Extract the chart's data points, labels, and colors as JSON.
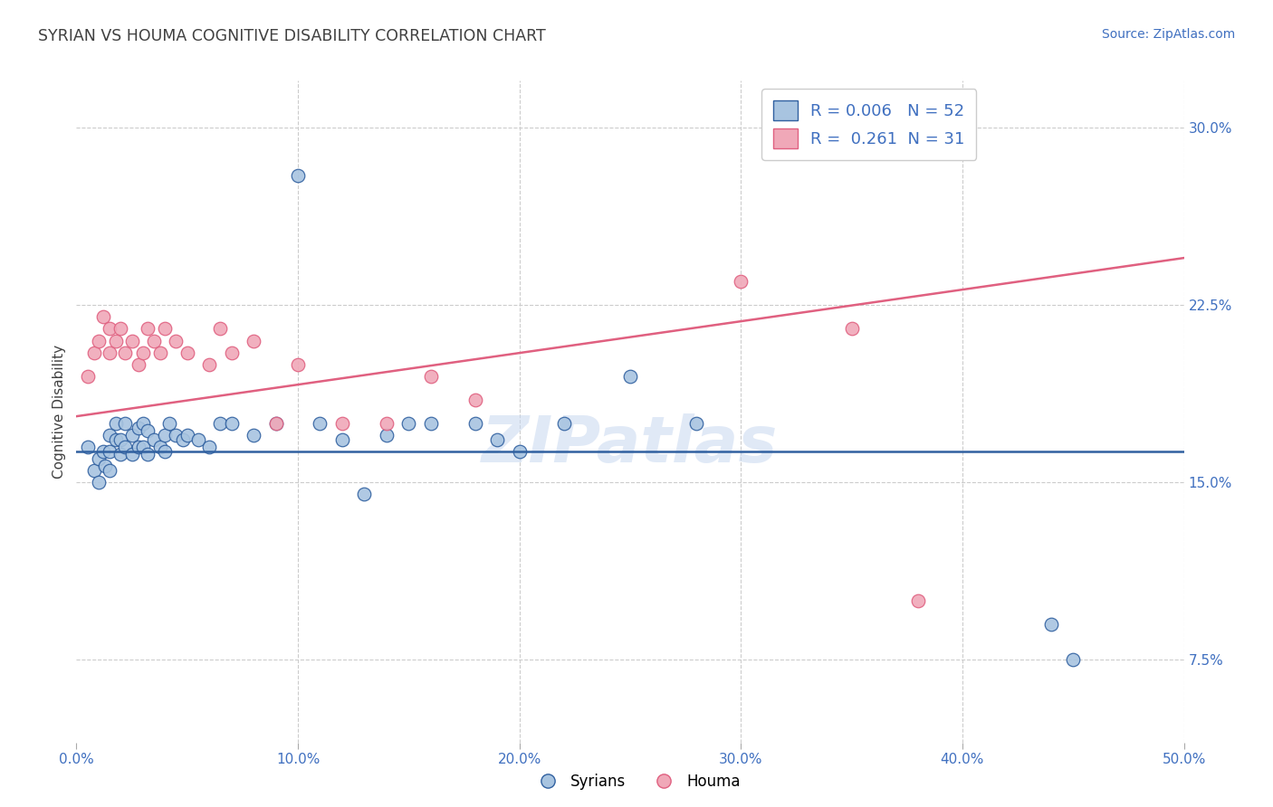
{
  "title": "SYRIAN VS HOUMA COGNITIVE DISABILITY CORRELATION CHART",
  "source_text": "Source: ZipAtlas.com",
  "ylabel": "Cognitive Disability",
  "xlabel": "",
  "xlim": [
    0.0,
    0.5
  ],
  "ylim": [
    0.04,
    0.32
  ],
  "yticks": [
    0.075,
    0.15,
    0.225,
    0.3
  ],
  "ytick_labels": [
    "7.5%",
    "15.0%",
    "22.5%",
    "30.0%"
  ],
  "xticks": [
    0.0,
    0.1,
    0.2,
    0.3,
    0.4,
    0.5
  ],
  "xtick_labels": [
    "0.0%",
    "10.0%",
    "20.0%",
    "30.0%",
    "40.0%",
    "50.0%"
  ],
  "legend_r_syrians": "0.006",
  "legend_n_syrians": "52",
  "legend_r_houma": "0.261",
  "legend_n_houma": "31",
  "syrians_color": "#a8c4e0",
  "houma_color": "#f0a8b8",
  "syrians_line_color": "#3060a0",
  "houma_line_color": "#e06080",
  "legend_text_color": "#4070c0",
  "title_color": "#404040",
  "axis_label_color": "#404040",
  "tick_color": "#4070c0",
  "grid_color": "#cccccc",
  "watermark_text": "ZIPatlas",
  "watermark_color": "#c8d8f0",
  "background_color": "#ffffff",
  "syrians_line_y": [
    0.163,
    0.163
  ],
  "houma_line_y": [
    0.178,
    0.245
  ],
  "syrians_x": [
    0.005,
    0.008,
    0.01,
    0.01,
    0.012,
    0.013,
    0.015,
    0.015,
    0.015,
    0.018,
    0.018,
    0.02,
    0.02,
    0.022,
    0.022,
    0.025,
    0.025,
    0.028,
    0.028,
    0.03,
    0.03,
    0.032,
    0.032,
    0.035,
    0.038,
    0.04,
    0.04,
    0.042,
    0.045,
    0.048,
    0.05,
    0.055,
    0.06,
    0.065,
    0.07,
    0.08,
    0.09,
    0.1,
    0.11,
    0.12,
    0.13,
    0.14,
    0.15,
    0.16,
    0.18,
    0.19,
    0.2,
    0.22,
    0.25,
    0.28,
    0.44,
    0.45
  ],
  "syrians_y": [
    0.165,
    0.155,
    0.16,
    0.15,
    0.163,
    0.157,
    0.17,
    0.163,
    0.155,
    0.175,
    0.168,
    0.168,
    0.162,
    0.175,
    0.165,
    0.17,
    0.162,
    0.173,
    0.165,
    0.175,
    0.165,
    0.172,
    0.162,
    0.168,
    0.165,
    0.17,
    0.163,
    0.175,
    0.17,
    0.168,
    0.17,
    0.168,
    0.165,
    0.175,
    0.175,
    0.17,
    0.175,
    0.28,
    0.175,
    0.168,
    0.145,
    0.17,
    0.175,
    0.175,
    0.175,
    0.168,
    0.163,
    0.175,
    0.195,
    0.175,
    0.09,
    0.075
  ],
  "houma_x": [
    0.005,
    0.008,
    0.01,
    0.012,
    0.015,
    0.015,
    0.018,
    0.02,
    0.022,
    0.025,
    0.028,
    0.03,
    0.032,
    0.035,
    0.038,
    0.04,
    0.045,
    0.05,
    0.06,
    0.065,
    0.07,
    0.08,
    0.09,
    0.1,
    0.12,
    0.14,
    0.16,
    0.18,
    0.3,
    0.35,
    0.38
  ],
  "houma_y": [
    0.195,
    0.205,
    0.21,
    0.22,
    0.215,
    0.205,
    0.21,
    0.215,
    0.205,
    0.21,
    0.2,
    0.205,
    0.215,
    0.21,
    0.205,
    0.215,
    0.21,
    0.205,
    0.2,
    0.215,
    0.205,
    0.21,
    0.175,
    0.2,
    0.175,
    0.175,
    0.195,
    0.185,
    0.235,
    0.215,
    0.1
  ]
}
